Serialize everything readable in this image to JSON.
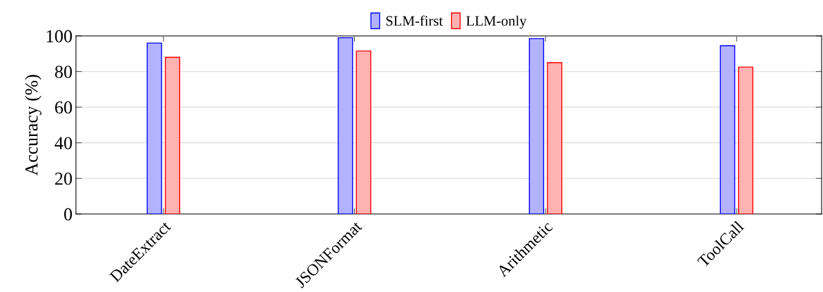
{
  "chart_data": {
    "type": "bar",
    "ylabel": "Accuracy (%)",
    "categories": [
      "DateExtract",
      "JSONFormat",
      "Arithmetic",
      "ToolCall"
    ],
    "series": [
      {
        "name": "SLM-first",
        "color": "#0000ff",
        "values": [
          96,
          99,
          98.5,
          94.5
        ]
      },
      {
        "name": "LLM-only",
        "color": "#ff0000",
        "values": [
          88,
          91.5,
          85,
          82.5
        ]
      }
    ],
    "ylim": [
      0,
      100
    ],
    "yticks": [
      0,
      20,
      40,
      60,
      80,
      100
    ],
    "grid": "y",
    "legend": "top"
  }
}
